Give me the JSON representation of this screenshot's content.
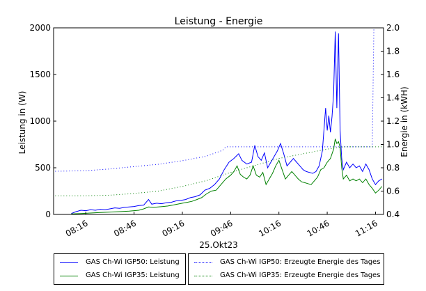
{
  "chart_data": {
    "type": "line",
    "title": "Leistung - Energie",
    "xlabel": "25.Okt23",
    "ylabel_left": "Leistung in (W)",
    "ylabel_right": "Energie in (kWH)",
    "x_ticks": [
      "08:16",
      "08:46",
      "09:16",
      "09:46",
      "10:16",
      "10:46",
      "11:16"
    ],
    "x_range": [
      "07:56",
      "11:21"
    ],
    "y_left_ticks": [
      "0",
      "500",
      "1000",
      "1500",
      "2000"
    ],
    "ylim_left": [
      0,
      2000
    ],
    "y_right_ticks": [
      "0.4",
      "0.6",
      "0.8",
      "1.0",
      "1.2",
      "1.4",
      "1.6",
      "1.8",
      "2.0"
    ],
    "ylim_right": [
      0.4,
      2.0
    ],
    "grid": false,
    "legend_position": "bottom",
    "series": [
      {
        "name": "GAS Ch-Wi IGP50: Leistung",
        "axis": "left",
        "style": "solid",
        "color": "#0000ff",
        "points": [
          [
            "08:07",
            10
          ],
          [
            "08:10",
            30
          ],
          [
            "08:13",
            45
          ],
          [
            "08:16",
            40
          ],
          [
            "08:19",
            50
          ],
          [
            "08:22",
            45
          ],
          [
            "08:25",
            55
          ],
          [
            "08:28",
            50
          ],
          [
            "08:31",
            60
          ],
          [
            "08:34",
            70
          ],
          [
            "08:37",
            65
          ],
          [
            "08:40",
            75
          ],
          [
            "08:43",
            80
          ],
          [
            "08:46",
            85
          ],
          [
            "08:49",
            95
          ],
          [
            "08:52",
            100
          ],
          [
            "08:55",
            160
          ],
          [
            "08:57",
            110
          ],
          [
            "09:00",
            120
          ],
          [
            "09:03",
            115
          ],
          [
            "09:06",
            125
          ],
          [
            "09:09",
            130
          ],
          [
            "09:12",
            145
          ],
          [
            "09:15",
            150
          ],
          [
            "09:18",
            160
          ],
          [
            "09:21",
            180
          ],
          [
            "09:24",
            190
          ],
          [
            "09:27",
            210
          ],
          [
            "09:30",
            260
          ],
          [
            "09:33",
            280
          ],
          [
            "09:36",
            320
          ],
          [
            "09:39",
            380
          ],
          [
            "09:42",
            480
          ],
          [
            "09:45",
            560
          ],
          [
            "09:48",
            600
          ],
          [
            "09:51",
            650
          ],
          [
            "09:53",
            580
          ],
          [
            "09:56",
            540
          ],
          [
            "09:59",
            560
          ],
          [
            "10:01",
            740
          ],
          [
            "10:03",
            620
          ],
          [
            "10:05",
            580
          ],
          [
            "10:07",
            660
          ],
          [
            "10:09",
            500
          ],
          [
            "10:11",
            560
          ],
          [
            "10:13",
            620
          ],
          [
            "10:15",
            680
          ],
          [
            "10:17",
            760
          ],
          [
            "10:19",
            650
          ],
          [
            "10:21",
            520
          ],
          [
            "10:23",
            560
          ],
          [
            "10:25",
            600
          ],
          [
            "10:27",
            560
          ],
          [
            "10:29",
            520
          ],
          [
            "10:31",
            480
          ],
          [
            "10:33",
            460
          ],
          [
            "10:35",
            450
          ],
          [
            "10:37",
            440
          ],
          [
            "10:39",
            460
          ],
          [
            "10:41",
            520
          ],
          [
            "10:43",
            680
          ],
          [
            "10:45",
            1140
          ],
          [
            "10:46",
            900
          ],
          [
            "10:47",
            1060
          ],
          [
            "10:48",
            880
          ],
          [
            "10:49",
            1050
          ],
          [
            "10:50",
            1300
          ],
          [
            "10:51",
            1960
          ],
          [
            "10:52",
            1140
          ],
          [
            "10:53",
            1940
          ],
          [
            "10:54",
            900
          ],
          [
            "10:55",
            600
          ],
          [
            "10:56",
            480
          ],
          [
            "10:58",
            560
          ],
          [
            "11:00",
            500
          ],
          [
            "11:02",
            540
          ],
          [
            "11:04",
            500
          ],
          [
            "11:06",
            520
          ],
          [
            "11:08",
            460
          ],
          [
            "11:10",
            540
          ],
          [
            "11:12",
            480
          ],
          [
            "11:14",
            380
          ],
          [
            "11:16",
            320
          ],
          [
            "11:18",
            360
          ],
          [
            "11:20",
            380
          ]
        ]
      },
      {
        "name": "GAS Ch-Wi IGP35: Leistung",
        "axis": "left",
        "style": "solid",
        "color": "#008000",
        "points": [
          [
            "08:07",
            5
          ],
          [
            "08:13",
            10
          ],
          [
            "08:19",
            15
          ],
          [
            "08:25",
            20
          ],
          [
            "08:31",
            25
          ],
          [
            "08:37",
            30
          ],
          [
            "08:43",
            35
          ],
          [
            "08:49",
            45
          ],
          [
            "08:52",
            60
          ],
          [
            "08:55",
            80
          ],
          [
            "08:58",
            75
          ],
          [
            "09:01",
            80
          ],
          [
            "09:04",
            85
          ],
          [
            "09:07",
            90
          ],
          [
            "09:10",
            100
          ],
          [
            "09:13",
            110
          ],
          [
            "09:16",
            120
          ],
          [
            "09:19",
            130
          ],
          [
            "09:22",
            140
          ],
          [
            "09:25",
            160
          ],
          [
            "09:28",
            180
          ],
          [
            "09:31",
            220
          ],
          [
            "09:34",
            250
          ],
          [
            "09:37",
            260
          ],
          [
            "09:40",
            320
          ],
          [
            "09:43",
            380
          ],
          [
            "09:46",
            420
          ],
          [
            "09:48",
            460
          ],
          [
            "09:50",
            520
          ],
          [
            "09:52",
            430
          ],
          [
            "09:54",
            400
          ],
          [
            "09:56",
            380
          ],
          [
            "09:58",
            420
          ],
          [
            "10:00",
            520
          ],
          [
            "10:02",
            420
          ],
          [
            "10:04",
            400
          ],
          [
            "10:06",
            450
          ],
          [
            "10:08",
            320
          ],
          [
            "10:10",
            380
          ],
          [
            "10:12",
            440
          ],
          [
            "10:14",
            520
          ],
          [
            "10:16",
            580
          ],
          [
            "10:18",
            480
          ],
          [
            "10:20",
            380
          ],
          [
            "10:22",
            420
          ],
          [
            "10:24",
            460
          ],
          [
            "10:26",
            420
          ],
          [
            "10:28",
            380
          ],
          [
            "10:30",
            350
          ],
          [
            "10:32",
            340
          ],
          [
            "10:34",
            330
          ],
          [
            "10:36",
            320
          ],
          [
            "10:38",
            360
          ],
          [
            "10:40",
            400
          ],
          [
            "10:42",
            480
          ],
          [
            "10:44",
            500
          ],
          [
            "10:46",
            560
          ],
          [
            "10:48",
            600
          ],
          [
            "10:50",
            700
          ],
          [
            "10:51",
            810
          ],
          [
            "10:52",
            760
          ],
          [
            "10:53",
            780
          ],
          [
            "10:54",
            720
          ],
          [
            "10:55",
            500
          ],
          [
            "10:56",
            380
          ],
          [
            "10:58",
            420
          ],
          [
            "11:00",
            360
          ],
          [
            "11:02",
            380
          ],
          [
            "11:04",
            360
          ],
          [
            "11:06",
            380
          ],
          [
            "11:08",
            340
          ],
          [
            "11:10",
            380
          ],
          [
            "11:12",
            320
          ],
          [
            "11:14",
            280
          ],
          [
            "11:16",
            230
          ],
          [
            "11:18",
            260
          ],
          [
            "11:20",
            300
          ]
        ]
      },
      {
        "name": "GAS Ch-Wi IGP50: Erzeugte Energie des Tages",
        "axis": "right",
        "style": "dotted",
        "color": "#0000ff",
        "points": [
          [
            "07:57",
            0.77
          ],
          [
            "08:16",
            0.775
          ],
          [
            "08:31",
            0.79
          ],
          [
            "08:46",
            0.81
          ],
          [
            "09:01",
            0.83
          ],
          [
            "09:16",
            0.86
          ],
          [
            "09:31",
            0.9
          ],
          [
            "09:41",
            0.95
          ],
          [
            "09:43",
            0.98
          ],
          [
            "10:16",
            0.98
          ],
          [
            "10:46",
            0.98
          ],
          [
            "11:07",
            0.98
          ],
          [
            "11:14",
            0.98
          ],
          [
            "11:15",
            2.0
          ],
          [
            "11:20",
            2.0
          ]
        ]
      },
      {
        "name": "GAS Ch-Wi IGP35: Erzeugte Energie des Tages",
        "axis": "right",
        "style": "dotted",
        "color": "#008000",
        "points": [
          [
            "07:57",
            0.56
          ],
          [
            "08:16",
            0.56
          ],
          [
            "08:31",
            0.565
          ],
          [
            "08:46",
            0.58
          ],
          [
            "09:01",
            0.6
          ],
          [
            "09:16",
            0.64
          ],
          [
            "09:31",
            0.69
          ],
          [
            "09:46",
            0.76
          ],
          [
            "10:01",
            0.82
          ],
          [
            "10:16",
            0.88
          ],
          [
            "10:31",
            0.92
          ],
          [
            "10:46",
            0.96
          ],
          [
            "10:56",
            0.98
          ],
          [
            "11:20",
            0.98
          ]
        ]
      }
    ]
  }
}
